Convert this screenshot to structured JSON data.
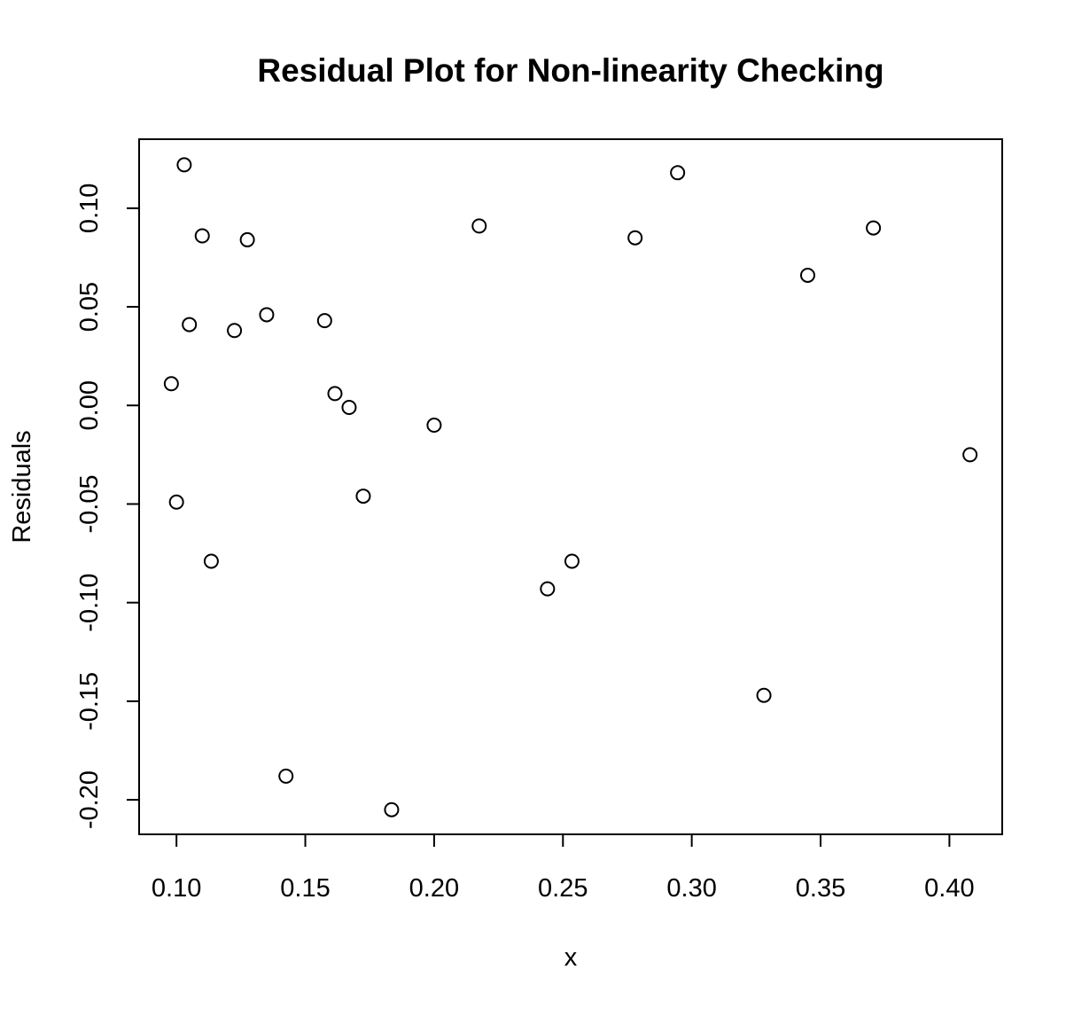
{
  "chart_data": {
    "type": "scatter",
    "title": "Residual Plot for Non-linearity Checking",
    "xlabel": "x",
    "ylabel": "Residuals",
    "xlim": [
      0.0855,
      0.4205
    ],
    "ylim": [
      -0.2175,
      0.135
    ],
    "xticks": [
      0.1,
      0.15,
      0.2,
      0.25,
      0.3,
      0.35,
      0.4
    ],
    "xtick_labels": [
      "0.10",
      "0.15",
      "0.20",
      "0.25",
      "0.30",
      "0.35",
      "0.40"
    ],
    "yticks": [
      -0.2,
      -0.15,
      -0.1,
      -0.05,
      0.0,
      0.05,
      0.1
    ],
    "ytick_labels": [
      "-0.20",
      "-0.15",
      "-0.10",
      "-0.05",
      "0.00",
      "0.05",
      "0.10"
    ],
    "grid": false,
    "legend": "none",
    "marker": "open-circle",
    "point_color": "#000000",
    "points": [
      {
        "x": 0.098,
        "y": 0.011
      },
      {
        "x": 0.1,
        "y": -0.049
      },
      {
        "x": 0.103,
        "y": 0.122
      },
      {
        "x": 0.105,
        "y": 0.041
      },
      {
        "x": 0.11,
        "y": 0.086
      },
      {
        "x": 0.1135,
        "y": -0.079
      },
      {
        "x": 0.1225,
        "y": 0.038
      },
      {
        "x": 0.1275,
        "y": 0.084
      },
      {
        "x": 0.135,
        "y": 0.046
      },
      {
        "x": 0.1425,
        "y": -0.188
      },
      {
        "x": 0.1575,
        "y": 0.043
      },
      {
        "x": 0.1615,
        "y": 0.006
      },
      {
        "x": 0.167,
        "y": -0.001
      },
      {
        "x": 0.1725,
        "y": -0.046
      },
      {
        "x": 0.1835,
        "y": -0.205
      },
      {
        "x": 0.2,
        "y": -0.01
      },
      {
        "x": 0.2175,
        "y": 0.091
      },
      {
        "x": 0.244,
        "y": -0.093
      },
      {
        "x": 0.2535,
        "y": -0.079
      },
      {
        "x": 0.278,
        "y": 0.085
      },
      {
        "x": 0.2945,
        "y": 0.118
      },
      {
        "x": 0.328,
        "y": -0.147
      },
      {
        "x": 0.345,
        "y": 0.066
      },
      {
        "x": 0.3705,
        "y": 0.09
      },
      {
        "x": 0.408,
        "y": -0.025
      }
    ]
  }
}
